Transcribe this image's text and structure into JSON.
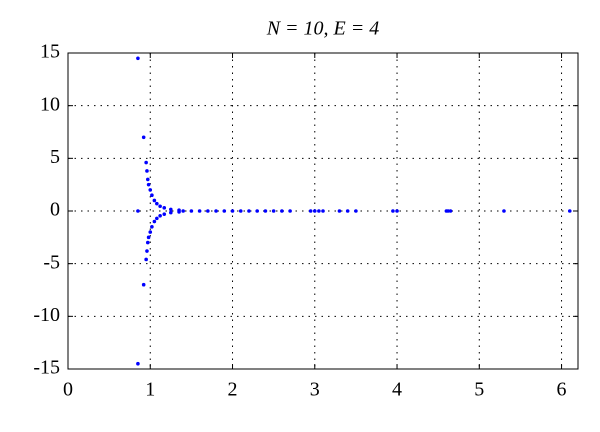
{
  "chart_data": {
    "type": "scatter",
    "title": "N = 10, E = 4",
    "series": [
      {
        "color": "#0000ff",
        "x": [
          0.85,
          0.85,
          0.92,
          0.92,
          0.95,
          0.95,
          0.96,
          0.96,
          0.97,
          0.97,
          0.98,
          0.98,
          1.0,
          1.0,
          1.02,
          1.02,
          1.05,
          1.05,
          1.08,
          1.08,
          1.12,
          1.12,
          1.17,
          1.17,
          1.25,
          1.25,
          1.35,
          1.35,
          0.85,
          1.4,
          1.5,
          1.6,
          1.7,
          1.8,
          1.9,
          2.0,
          2.1,
          2.2,
          2.3,
          2.4,
          2.5,
          2.6,
          2.7,
          2.95,
          3.0,
          3.05,
          3.1,
          3.3,
          3.4,
          3.5,
          3.95,
          4.0,
          4.6,
          4.62,
          4.65,
          5.3,
          6.1
        ],
        "values": [
          14.5,
          -14.5,
          7,
          -7,
          4.6,
          -4.6,
          3.8,
          -3.8,
          3.0,
          -3.0,
          2.5,
          -2.5,
          2.0,
          -2.0,
          1.5,
          -1.5,
          1.0,
          -1.0,
          0.7,
          -0.7,
          0.45,
          -0.45,
          0.3,
          -0.3,
          0.15,
          -0.15,
          0.08,
          -0.08,
          0,
          0,
          0,
          0,
          0,
          0,
          0,
          0,
          0,
          0,
          0,
          0,
          0,
          0,
          0,
          0,
          0,
          0,
          0,
          0,
          0,
          0,
          0,
          0,
          0,
          0,
          0,
          0,
          0
        ]
      }
    ],
    "xlim": [
      0,
      6.2
    ],
    "ylim": [
      -15,
      15
    ],
    "xticks": [
      0,
      1,
      2,
      3,
      4,
      5,
      6
    ],
    "yticks": [
      -15,
      -10,
      -5,
      0,
      5,
      10,
      15
    ],
    "grid": true
  }
}
